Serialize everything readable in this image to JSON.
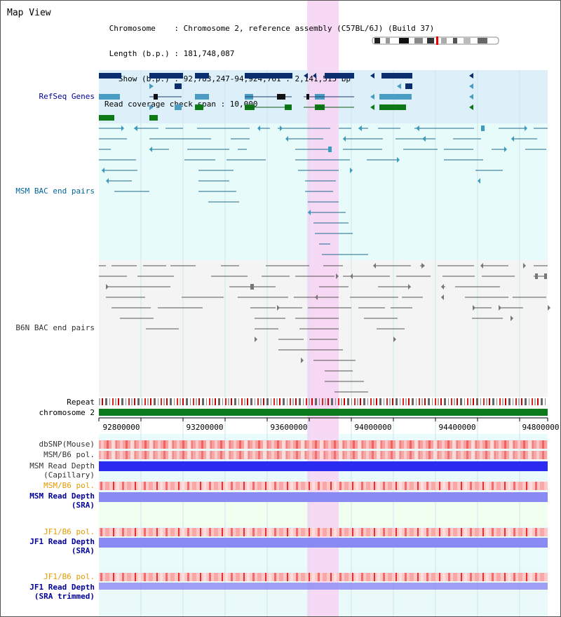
{
  "header": {
    "title": "Map View",
    "info_lines": [
      " Chromosome    : Chromosome 2, reference assembly (C57BL/6J) (Build 37)",
      " Length (b.p.) : 181,748,087",
      "   Show (b.p.) : 92,783,247-94,924,761 : 2,141,515 bp",
      "Read coverage check span : 10,000"
    ]
  },
  "tracks": {
    "refseq": "RefSeq Genes",
    "msm_bac": "MSM BAC end pairs",
    "b6n_bac": "B6N BAC end pairs",
    "repeat": "Repeat",
    "chromosome": "chromosome 2",
    "dbsnp": "dbSNP(Mouse)",
    "msm_b6_pol_1": "MSM/B6 pol.",
    "msm_read_depth_cap_1": "MSM Read Depth",
    "msm_read_depth_cap_2": "(Capillary)",
    "msm_b6_pol_2": "MSM/B6 pol.",
    "msm_read_depth_sra_1": "MSM Read Depth",
    "msm_read_depth_sra_2": "(SRA)",
    "jf1_b6_pol_1": "JF1/B6 pol.",
    "jf1_read_depth_sra_1": "JF1 Read Depth",
    "jf1_read_depth_sra_2": "(SRA)",
    "jf1_b6_pol_2": "JF1/B6 pol.",
    "jf1_read_depth_trim_1": "JF1 Read Depth",
    "jf1_read_depth_trim_2": "(SRA trimmed)"
  },
  "axis": {
    "ticks": [
      "92800000",
      "93200000",
      "93600000",
      "94000000",
      "94400000",
      "94800000"
    ]
  },
  "colors": {
    "refseq_label": "#000099",
    "msm_label": "#006699",
    "b6n_label": "#333333",
    "orange_label": "#e69900",
    "highlight": "#f5ccf0",
    "refseq_bg": "#e0f2fa",
    "lightbg": "#e6fafa"
  }
}
